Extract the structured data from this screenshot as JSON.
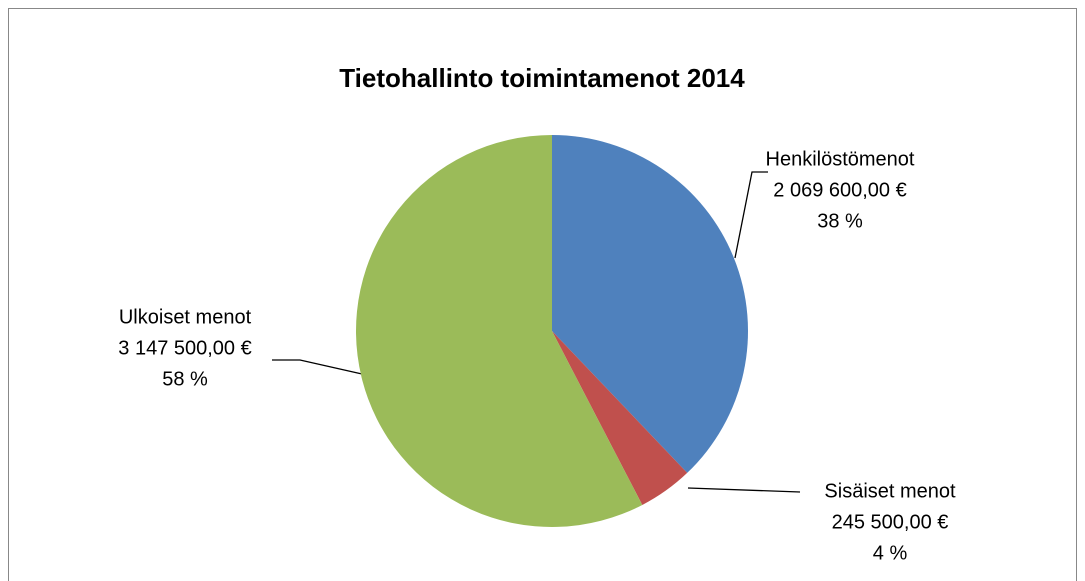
{
  "chart_data": {
    "type": "pie",
    "title": "Tietohallinto toimintamenot 2014",
    "categories": [
      "Henkilöstömenot",
      "Sisäiset menot",
      "Ulkoiset menot"
    ],
    "values": [
      2069600,
      245500,
      3147500
    ],
    "value_labels": [
      "2 069 600,00 €",
      "245 500,00 €",
      "3 147 500,00 €"
    ],
    "percents": [
      38,
      4,
      58
    ],
    "percent_labels": [
      "38 %",
      "4 %",
      "58 %"
    ],
    "colors": [
      "#4f81bd",
      "#c0504d",
      "#9bbb59"
    ]
  }
}
